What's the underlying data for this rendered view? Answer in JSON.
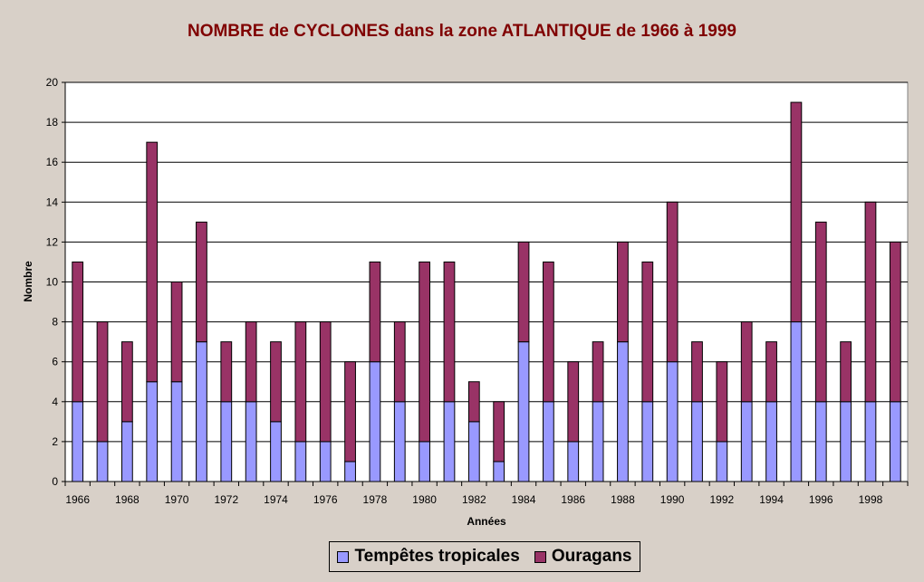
{
  "chart_data": {
    "type": "bar",
    "stacked": true,
    "title": "NOMBRE de CYCLONES dans la zone ATLANTIQUE de 1966 à 1999",
    "xlabel": "Années",
    "ylabel": "Nombre",
    "ylim": [
      0,
      20
    ],
    "yticks": [
      0,
      2,
      4,
      6,
      8,
      10,
      12,
      14,
      16,
      18,
      20
    ],
    "xtick_labels": [
      "1966",
      "1968",
      "1970",
      "1972",
      "1974",
      "1976",
      "1978",
      "1980",
      "1982",
      "1984",
      "1986",
      "1988",
      "1990",
      "1992",
      "1994",
      "1996",
      "1998"
    ],
    "grid": true,
    "legend_position": "bottom",
    "categories": [
      "1966",
      "1967",
      "1968",
      "1969",
      "1970",
      "1971",
      "1972",
      "1973",
      "1974",
      "1975",
      "1976",
      "1977",
      "1978",
      "1979",
      "1980",
      "1981",
      "1982",
      "1983",
      "1984",
      "1985",
      "1986",
      "1987",
      "1988",
      "1989",
      "1990",
      "1991",
      "1992",
      "1993",
      "1994",
      "1995",
      "1996",
      "1997",
      "1998",
      "1999"
    ],
    "series": [
      {
        "name": "Tempêtes tropicales",
        "color": "#9999ff",
        "values": [
          4,
          2,
          3,
          5,
          5,
          7,
          4,
          4,
          3,
          2,
          2,
          1,
          6,
          4,
          2,
          4,
          3,
          1,
          7,
          4,
          2,
          4,
          7,
          4,
          6,
          4,
          2,
          4,
          4,
          8,
          4,
          4,
          4,
          4
        ]
      },
      {
        "name": "Ouragans",
        "color": "#993366",
        "values": [
          7,
          6,
          4,
          12,
          5,
          6,
          3,
          4,
          4,
          6,
          6,
          5,
          5,
          4,
          9,
          7,
          2,
          3,
          5,
          7,
          4,
          3,
          5,
          7,
          8,
          3,
          4,
          4,
          3,
          11,
          9,
          3,
          10,
          8
        ]
      }
    ],
    "plot_background": "#ffffff"
  }
}
